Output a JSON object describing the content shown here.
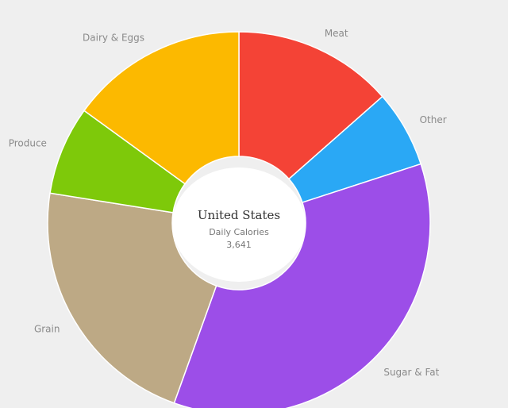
{
  "chart_data": {
    "type": "pie",
    "variant": "donut",
    "center": {
      "title": "United States",
      "subtitle": "Daily Calories",
      "value": "3,641"
    },
    "slices": [
      {
        "label": "Meat",
        "value": 13.5,
        "color": "#f44336"
      },
      {
        "label": "Other",
        "value": 6.5,
        "color": "#2aa8f5"
      },
      {
        "label": "Sugar & Fat",
        "value": 35.5,
        "color": "#9c4ee8"
      },
      {
        "label": "Grain",
        "value": 22.0,
        "color": "#bda985"
      },
      {
        "label": "Produce",
        "value": 7.5,
        "color": "#7ec90a"
      },
      {
        "label": "Dairy & Eggs",
        "value": 15.0,
        "color": "#fcb900"
      }
    ],
    "legend": "none"
  }
}
